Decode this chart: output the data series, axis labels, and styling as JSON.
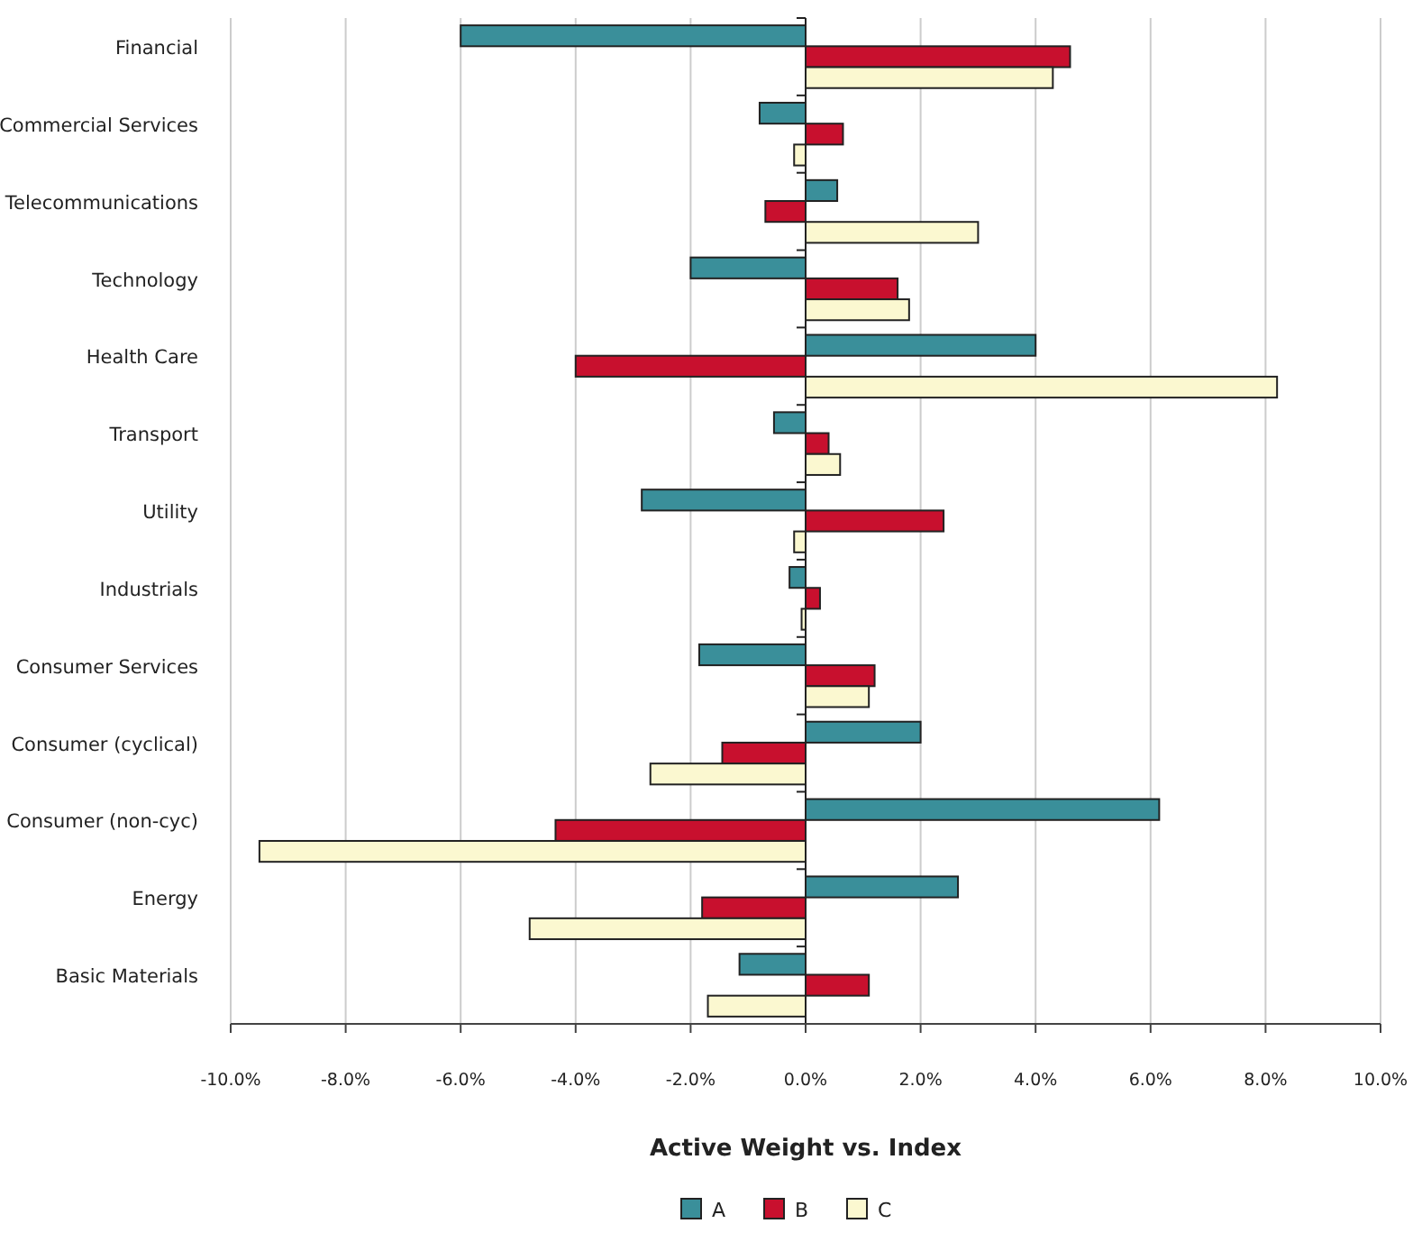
{
  "chart_data": {
    "type": "bar",
    "orientation": "horizontal",
    "categories": [
      "Financial",
      "Commercial Services",
      "Telecommunications",
      "Technology",
      "Health Care",
      "Transport",
      "Utility",
      "Industrials",
      "Consumer Services",
      "Consumer (cyclical)",
      "Consumer (non-cyc)",
      "Energy",
      "Basic Materials"
    ],
    "series": [
      {
        "name": "A",
        "color": "#3a8f9a",
        "values": [
          -6.0,
          -0.8,
          0.55,
          -2.0,
          4.0,
          -0.55,
          -2.85,
          -0.28,
          -1.85,
          2.0,
          6.15,
          2.65,
          -1.15
        ]
      },
      {
        "name": "B",
        "color": "#c8102e",
        "values": [
          4.6,
          0.65,
          -0.7,
          1.6,
          -4.0,
          0.4,
          2.4,
          0.25,
          1.2,
          -1.45,
          -4.35,
          -1.8,
          1.1
        ]
      },
      {
        "name": "C",
        "color": "#fbf8d0",
        "values": [
          4.3,
          -0.2,
          3.0,
          1.8,
          8.2,
          0.6,
          -0.2,
          -0.07,
          1.1,
          -2.7,
          -9.5,
          -4.8,
          -1.7
        ]
      }
    ],
    "xlim": [
      -10,
      10
    ],
    "xticks": [
      {
        "value": -10,
        "label": "-10.0%"
      },
      {
        "value": -8,
        "label": "-8.0%"
      },
      {
        "value": -6,
        "label": "-6.0%"
      },
      {
        "value": -4,
        "label": "-4.0%"
      },
      {
        "value": -2,
        "label": "-2.0%"
      },
      {
        "value": 0,
        "label": "0.0%"
      },
      {
        "value": 2,
        "label": "2.0%"
      },
      {
        "value": 4,
        "label": "4.0%"
      },
      {
        "value": 6,
        "label": "6.0%"
      },
      {
        "value": 8,
        "label": "8.0%"
      },
      {
        "value": 10,
        "label": "10.0%"
      }
    ],
    "xlabel": "Active Weight vs. Index",
    "grid": "x",
    "legend": "bottom"
  }
}
